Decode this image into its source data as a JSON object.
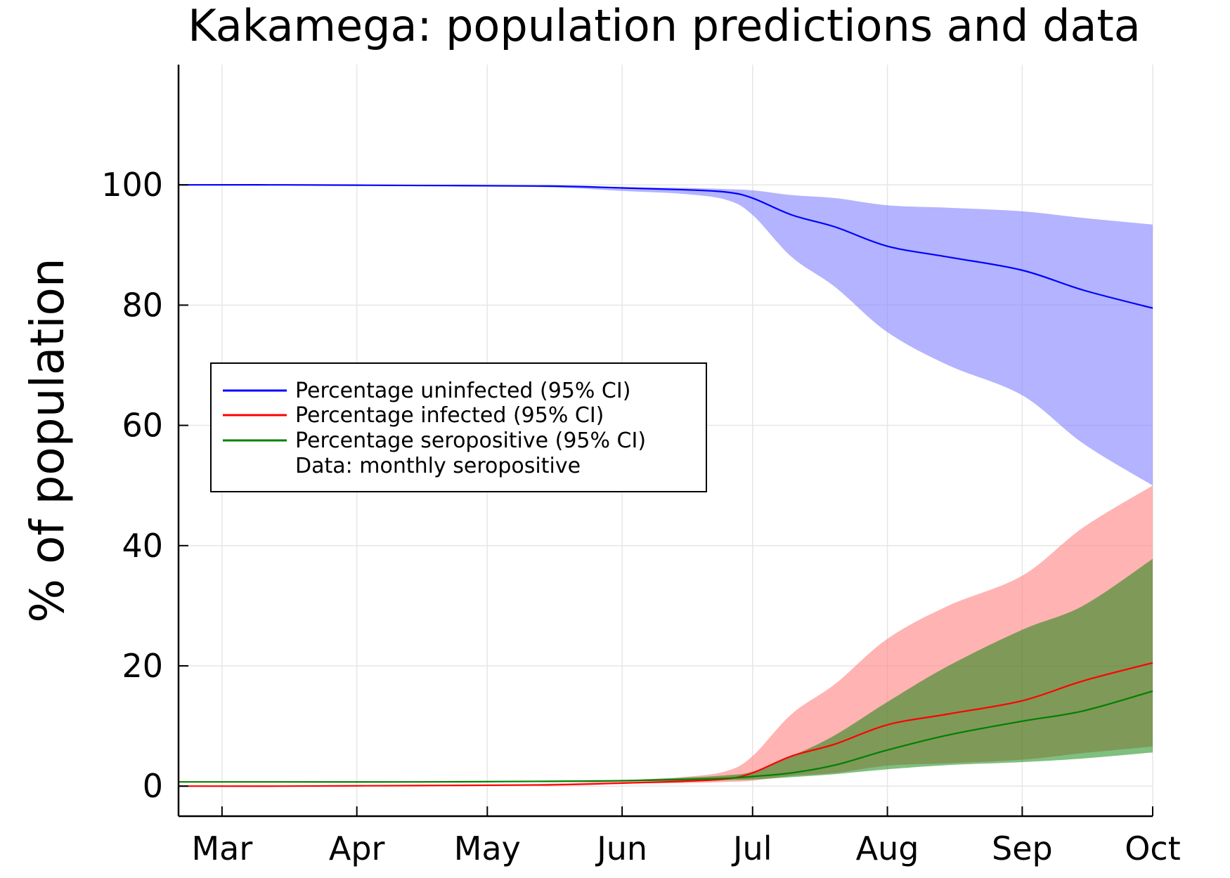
{
  "chart_data": {
    "type": "line",
    "title": "Kakamega: population predictions and data",
    "xlabel": "",
    "ylabel": "% of population",
    "x_range": [
      "2020-02-20",
      "2020-10-01"
    ],
    "y_range": [
      -5,
      120
    ],
    "x_ticks": [
      {
        "label": "Mar",
        "date": "2020-03-01"
      },
      {
        "label": "Apr",
        "date": "2020-04-01"
      },
      {
        "label": "May",
        "date": "2020-05-01"
      },
      {
        "label": "Jun",
        "date": "2020-06-01"
      },
      {
        "label": "Jul",
        "date": "2020-07-01"
      },
      {
        "label": "Aug",
        "date": "2020-08-01"
      },
      {
        "label": "Sep",
        "date": "2020-09-01"
      },
      {
        "label": "Oct",
        "date": "2020-10-01"
      }
    ],
    "y_ticks": [
      0,
      20,
      40,
      60,
      80,
      100
    ],
    "grid": true,
    "legend_position": "center-left",
    "series": [
      {
        "name": "Percentage uninfected (95% CI)",
        "color": "#0000ff",
        "band_color": "#8080ff",
        "x": [
          "2020-02-20",
          "2020-03-15",
          "2020-04-15",
          "2020-05-15",
          "2020-06-01",
          "2020-06-15",
          "2020-06-25",
          "2020-07-01",
          "2020-07-10",
          "2020-07-20",
          "2020-08-01",
          "2020-08-15",
          "2020-09-01",
          "2020-09-15",
          "2020-10-01"
        ],
        "mean": [
          100,
          100,
          99.9,
          99.8,
          99.5,
          99.2,
          98.8,
          97.8,
          95,
          93,
          89.8,
          88,
          85.8,
          82.5,
          79.5
        ],
        "lower": [
          100,
          100,
          99.9,
          99.6,
          99,
          98.5,
          97.5,
          95,
          88,
          83,
          75.5,
          70,
          65,
          57,
          50
        ],
        "upper": [
          100,
          100,
          99.9,
          99.9,
          99.6,
          99.5,
          99.3,
          99.1,
          98.3,
          97.8,
          96.6,
          96.2,
          95.6,
          94.5,
          93.4
        ]
      },
      {
        "name": "Percentage infected (95% CI)",
        "color": "#ff0000",
        "band_color": "#ff8080",
        "x": [
          "2020-02-20",
          "2020-03-15",
          "2020-04-15",
          "2020-05-15",
          "2020-06-01",
          "2020-06-15",
          "2020-06-25",
          "2020-07-01",
          "2020-07-10",
          "2020-07-20",
          "2020-08-01",
          "2020-08-15",
          "2020-09-01",
          "2020-09-15",
          "2020-10-01"
        ],
        "mean": [
          0,
          0,
          0.1,
          0.2,
          0.5,
          0.8,
          1.2,
          2.2,
          5,
          7,
          10.2,
          12,
          14.2,
          17.5,
          20.5
        ],
        "lower": [
          0,
          0,
          0.1,
          0.1,
          0.4,
          0.5,
          0.7,
          0.9,
          1.7,
          2.2,
          3.4,
          3.8,
          4.4,
          5.5,
          6.6
        ],
        "upper": [
          0,
          0,
          0.1,
          0.4,
          1,
          1.5,
          2.5,
          5,
          12,
          17,
          24.5,
          30,
          35,
          43,
          50
        ]
      },
      {
        "name": "Percentage seropositive (95% CI)",
        "color": "#008000",
        "band_color": "#008000",
        "x": [
          "2020-02-20",
          "2020-03-15",
          "2020-04-15",
          "2020-05-15",
          "2020-06-01",
          "2020-06-15",
          "2020-06-25",
          "2020-07-01",
          "2020-07-10",
          "2020-07-20",
          "2020-08-01",
          "2020-08-15",
          "2020-09-01",
          "2020-09-15",
          "2020-10-01"
        ],
        "mean": [
          0.7,
          0.7,
          0.7,
          0.8,
          0.9,
          1.1,
          1.3,
          1.6,
          2.2,
          3.5,
          6,
          8.5,
          10.8,
          12.5,
          15.8
        ],
        "lower": [
          0.7,
          0.7,
          0.7,
          0.7,
          0.8,
          0.9,
          1,
          1.1,
          1.5,
          2,
          2.8,
          3.5,
          4,
          4.6,
          5.6
        ],
        "upper": [
          0.7,
          0.7,
          0.7,
          0.8,
          1,
          1.4,
          1.8,
          2.4,
          5,
          8.5,
          14,
          20,
          26,
          30,
          37.8
        ]
      },
      {
        "name": "Data: monthly seropositive",
        "values": []
      }
    ]
  }
}
